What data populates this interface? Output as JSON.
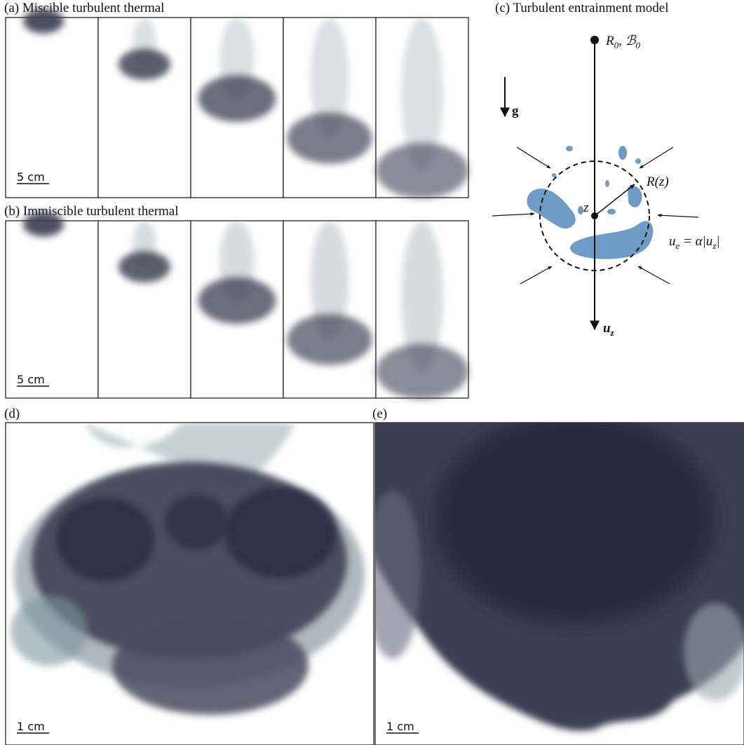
{
  "panels": {
    "a": {
      "label": "(a) Miscible turbulent thermal",
      "scale_bar": "5 cm"
    },
    "b": {
      "label": "(b) Immiscible turbulent thermal",
      "scale_bar": "5 cm"
    },
    "c": {
      "label": "(c) Turbulent entrainment model",
      "source": [
        "R",
        "0",
        ", ℬ",
        "0"
      ],
      "gravity": "g",
      "radius": "R(z)",
      "height": "z",
      "entrainment": [
        "u",
        "e",
        " = α|u",
        "z",
        "|"
      ],
      "velocity": [
        "u",
        "z"
      ]
    },
    "d": {
      "label": "(d)",
      "scale_bar": "1 cm"
    },
    "e": {
      "label": "(e)",
      "scale_bar": "1 cm"
    }
  }
}
